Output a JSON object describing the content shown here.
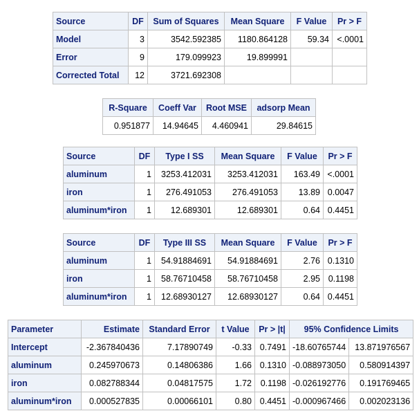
{
  "anova": {
    "headers": [
      "Source",
      "DF",
      "Sum of Squares",
      "Mean Square",
      "F Value",
      "Pr > F"
    ],
    "rows": [
      [
        "Model",
        "3",
        "3542.592385",
        "1180.864128",
        "59.34",
        "<.0001"
      ],
      [
        "Error",
        "9",
        "179.099923",
        "19.899991",
        "",
        ""
      ],
      [
        "Corrected Total",
        "12",
        "3721.692308",
        "",
        "",
        ""
      ]
    ]
  },
  "fit": {
    "headers": [
      "R-Square",
      "Coeff Var",
      "Root MSE",
      "adsorp Mean"
    ],
    "values": [
      "0.951877",
      "14.94645",
      "4.460941",
      "29.84615"
    ]
  },
  "type1": {
    "headers": [
      "Source",
      "DF",
      "Type I SS",
      "Mean Square",
      "F Value",
      "Pr > F"
    ],
    "rows": [
      [
        "aluminum",
        "1",
        "3253.412031",
        "3253.412031",
        "163.49",
        "<.0001"
      ],
      [
        "iron",
        "1",
        "276.491053",
        "276.491053",
        "13.89",
        "0.0047"
      ],
      [
        "aluminum*iron",
        "1",
        "12.689301",
        "12.689301",
        "0.64",
        "0.4451"
      ]
    ]
  },
  "type3": {
    "headers": [
      "Source",
      "DF",
      "Type III SS",
      "Mean Square",
      "F Value",
      "Pr > F"
    ],
    "rows": [
      [
        "aluminum",
        "1",
        "54.91884691",
        "54.91884691",
        "2.76",
        "0.1310"
      ],
      [
        "iron",
        "1",
        "58.76710458",
        "58.76710458",
        "2.95",
        "0.1198"
      ],
      [
        "aluminum*iron",
        "1",
        "12.68930127",
        "12.68930127",
        "0.64",
        "0.4451"
      ]
    ]
  },
  "params": {
    "headers": [
      "Parameter",
      "Estimate",
      "Standard Error",
      "t Value",
      "Pr > |t|",
      "95% Confidence Limits"
    ],
    "rows": [
      [
        "Intercept",
        "-2.367840436",
        "7.17890749",
        "-0.33",
        "0.7491",
        "-18.60765744",
        "13.871976567"
      ],
      [
        "aluminum",
        "0.245970673",
        "0.14806386",
        "1.66",
        "0.1310",
        "-0.088973050",
        "0.580914397"
      ],
      [
        "iron",
        "0.082788344",
        "0.04817575",
        "1.72",
        "0.1198",
        "-0.026192776",
        "0.191769465"
      ],
      [
        "aluminum*iron",
        "0.000527835",
        "0.00066101",
        "0.80",
        "0.4451",
        "-0.000967466",
        "0.002023136"
      ]
    ]
  }
}
